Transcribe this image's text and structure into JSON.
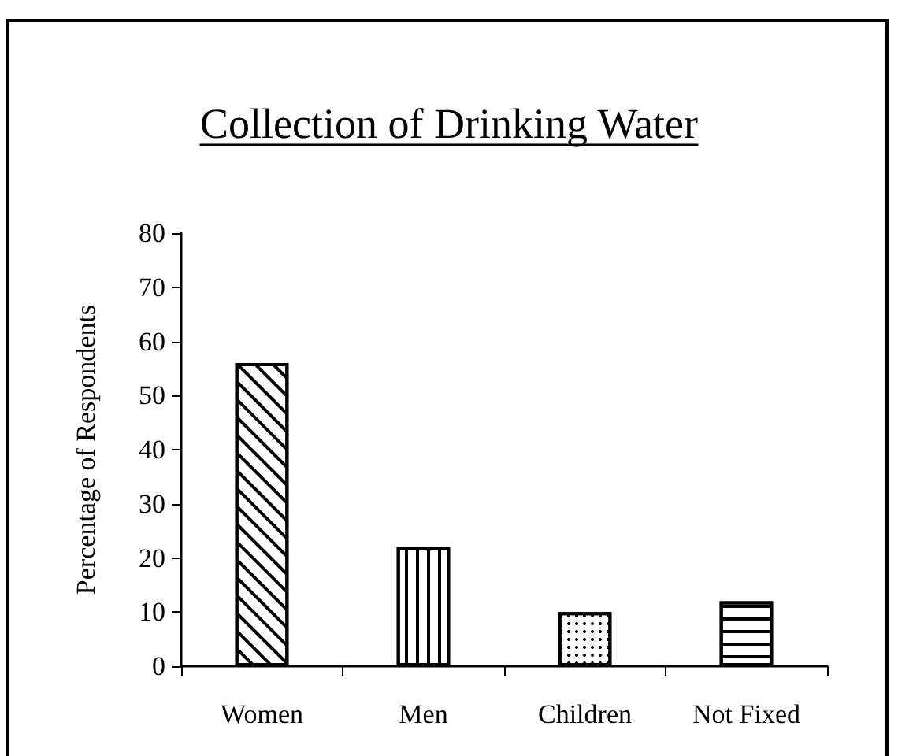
{
  "chart_data": {
    "type": "bar",
    "title": "Collection of Drinking Water",
    "ylabel": "Percentage of Respondents",
    "categories": [
      "Women",
      "Men",
      "Children",
      "Not Fixed"
    ],
    "values": [
      56,
      22,
      10,
      12
    ],
    "colors": [
      "#ffffff",
      "#ffffff",
      "#ffffff",
      "#ffffff"
    ],
    "ylim": [
      0,
      80
    ],
    "yticks": [
      0,
      10,
      20,
      30,
      40,
      50,
      60,
      70,
      80
    ]
  }
}
